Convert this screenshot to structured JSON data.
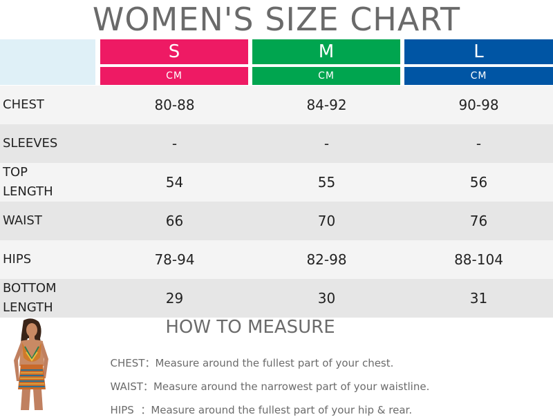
{
  "title": "WOMEN'S SIZE CHART",
  "sizes": [
    {
      "label": "S",
      "unit": "CM",
      "color": "#ee1a64"
    },
    {
      "label": "M",
      "unit": "CM",
      "color": "#00a54f"
    },
    {
      "label": "L",
      "unit": "CM",
      "color": "#0055a4"
    }
  ],
  "rows": [
    {
      "label": "CHEST",
      "values": [
        "80-88",
        "84-92",
        "90-98"
      ]
    },
    {
      "label": "SLEEVES",
      "values": [
        "-",
        "-",
        "-"
      ]
    },
    {
      "label": "TOP\nLENGTH",
      "values": [
        "54",
        "55",
        "56"
      ]
    },
    {
      "label": "WAIST",
      "values": [
        "66",
        "70",
        "76"
      ]
    },
    {
      "label": "HIPS",
      "values": [
        "78-94",
        "82-98",
        "88-104"
      ]
    },
    {
      "label": "BOTTOM\nLENGTH",
      "values": [
        "29",
        "30",
        "31"
      ]
    }
  ],
  "measure": {
    "title": "HOW TO MEASURE",
    "items": [
      {
        "label": "CHEST：",
        "text": "Measure around the fullest part of your chest."
      },
      {
        "label": "WAIST：",
        "text": "Measure around the narrowest part of your waistline."
      },
      {
        "label": "HIPS  ：",
        "text": "Measure around the fullest part of your hip & rear."
      }
    ]
  },
  "colors": {
    "row_light": "#f4f4f4",
    "row_dark": "#e6e6e6",
    "corner": "#dff0f7"
  }
}
